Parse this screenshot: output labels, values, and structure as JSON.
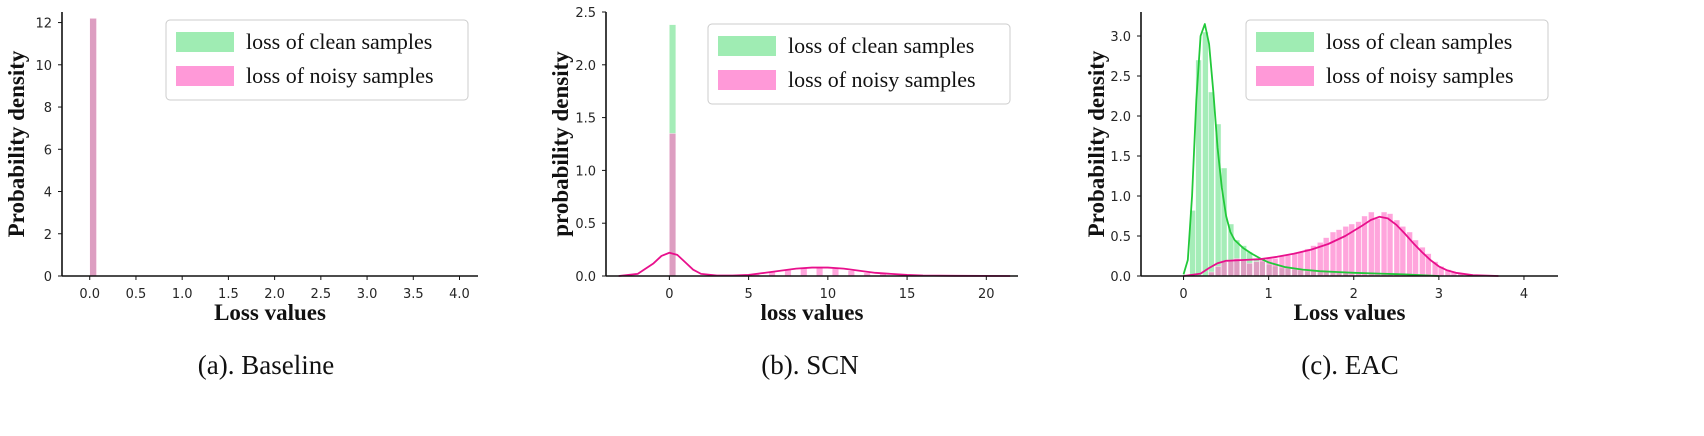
{
  "colors": {
    "clean_fill": "#7fe59a",
    "clean_line": "#22c93a",
    "noisy_fill": "#ff6ec7",
    "noisy_line": "#e8108c",
    "axis": "#111111"
  },
  "chart_data": [
    {
      "type": "histogram",
      "caption": "(a). Baseline",
      "xlabel": "Loss values",
      "ylabel": "Probability density",
      "xlim": [
        -0.3,
        4.2
      ],
      "ylim": [
        0,
        12.5
      ],
      "xticks": [
        0.0,
        0.5,
        1.0,
        1.5,
        2.0,
        2.5,
        3.0,
        3.5,
        4.0
      ],
      "xtick_labels": [
        "0.0",
        "0.5",
        "1.0",
        "1.5",
        "2.0",
        "2.5",
        "3.0",
        "3.5",
        "4.0"
      ],
      "yticks": [
        0,
        2,
        4,
        6,
        8,
        10,
        12
      ],
      "ytick_labels": [
        "0",
        "2",
        "4",
        "6",
        "8",
        "10",
        "12"
      ],
      "bin_width": 0.08,
      "legend": [
        "loss of clean samples",
        "loss of noisy samples"
      ],
      "legend_position": "top-right",
      "series": [
        {
          "name": "loss of clean samples",
          "x": [
            0.04,
            0.6,
            0.85
          ],
          "y": [
            12.2,
            0.02,
            0.02
          ],
          "kde": null
        },
        {
          "name": "loss of noisy samples",
          "x": [
            0.04,
            0.6
          ],
          "y": [
            12.2,
            0.03
          ],
          "kde": null
        }
      ]
    },
    {
      "type": "histogram",
      "caption": "(b). SCN",
      "xlabel": "loss values",
      "ylabel": "probability density",
      "xlim": [
        -4,
        22
      ],
      "ylim": [
        0,
        2.5
      ],
      "xticks": [
        0,
        5,
        10,
        15,
        20
      ],
      "xtick_labels": [
        "0",
        "5",
        "10",
        "15",
        "20"
      ],
      "yticks": [
        0.0,
        0.5,
        1.0,
        1.5,
        2.0,
        2.5
      ],
      "ytick_labels": [
        "0.0",
        "0.5",
        "1.0",
        "1.5",
        "2.0",
        "2.5"
      ],
      "bin_width": 0.45,
      "legend": [
        "loss of clean samples",
        "loss of noisy samples"
      ],
      "legend_position": "top-right",
      "series": [
        {
          "name": "loss of clean samples",
          "x": [
            0.22
          ],
          "y": [
            2.38
          ],
          "kde": null
        },
        {
          "name": "loss of noisy samples",
          "x": [
            0.22,
            5.5,
            6.5,
            7.5,
            8.5,
            9.5,
            10.5,
            11.5,
            12.5,
            13.5
          ],
          "y": [
            1.35,
            0.02,
            0.04,
            0.06,
            0.08,
            0.08,
            0.07,
            0.05,
            0.03,
            0.02
          ],
          "kde": {
            "x": [
              -3.2,
              -2,
              -1,
              -0.5,
              0,
              0.5,
              1,
              1.5,
              2,
              3,
              4,
              5,
              6,
              7,
              8,
              9,
              10,
              11,
              12,
              13,
              14,
              15,
              16,
              18,
              21.5
            ],
            "y": [
              0.0,
              0.02,
              0.12,
              0.19,
              0.22,
              0.2,
              0.13,
              0.06,
              0.02,
              0.005,
              0.005,
              0.01,
              0.03,
              0.05,
              0.07,
              0.08,
              0.08,
              0.07,
              0.05,
              0.03,
              0.02,
              0.01,
              0.005,
              0.002,
              0.0
            ]
          }
        }
      ]
    },
    {
      "type": "histogram",
      "caption": "(c). EAC",
      "xlabel": "Loss values",
      "ylabel": "Probability density",
      "xlim": [
        -0.5,
        4.4
      ],
      "ylim": [
        0,
        3.3
      ],
      "xticks": [
        0,
        1,
        2,
        3,
        4
      ],
      "xtick_labels": [
        "0",
        "1",
        "2",
        "3",
        "4"
      ],
      "yticks": [
        0.0,
        0.5,
        1.0,
        1.5,
        2.0,
        2.5,
        3.0
      ],
      "ytick_labels": [
        "0.0",
        "0.5",
        "1.0",
        "1.5",
        "2.0",
        "2.5",
        "3.0"
      ],
      "bin_width": 0.075,
      "legend": [
        "loss of clean samples",
        "loss of noisy samples"
      ],
      "legend_position": "top-right",
      "series": [
        {
          "name": "loss of clean samples",
          "x": [
            0.11,
            0.18,
            0.26,
            0.33,
            0.41,
            0.48,
            0.56,
            0.63,
            0.71,
            0.78,
            0.86,
            0.93,
            1.01,
            1.08,
            1.16,
            1.23,
            1.31,
            1.38,
            1.46,
            1.53,
            1.61,
            1.68,
            1.76,
            1.83,
            1.91
          ],
          "y": [
            0.82,
            2.7,
            3.05,
            2.3,
            1.9,
            1.35,
            0.65,
            0.45,
            0.38,
            0.3,
            0.22,
            0.18,
            0.14,
            0.12,
            0.1,
            0.09,
            0.08,
            0.07,
            0.06,
            0.06,
            0.05,
            0.05,
            0.05,
            0.04,
            0.04
          ],
          "kde": {
            "x": [
              0.0,
              0.05,
              0.1,
              0.15,
              0.2,
              0.25,
              0.3,
              0.35,
              0.4,
              0.45,
              0.5,
              0.55,
              0.6,
              0.7,
              0.8,
              0.9,
              1.0,
              1.2,
              1.4,
              1.6,
              1.8,
              2.0,
              2.3,
              2.6,
              3.0
            ],
            "y": [
              0.02,
              0.2,
              1.0,
              2.2,
              3.0,
              3.15,
              2.9,
              2.3,
              1.6,
              1.1,
              0.75,
              0.55,
              0.45,
              0.35,
              0.28,
              0.22,
              0.17,
              0.11,
              0.08,
              0.06,
              0.05,
              0.04,
              0.03,
              0.02,
              0.0
            ]
          }
        },
        {
          "name": "loss of noisy samples",
          "x": [
            0.33,
            0.41,
            0.48,
            0.56,
            0.63,
            0.71,
            0.78,
            0.86,
            0.93,
            1.01,
            1.08,
            1.16,
            1.23,
            1.31,
            1.38,
            1.46,
            1.53,
            1.61,
            1.68,
            1.76,
            1.83,
            1.91,
            1.98,
            2.06,
            2.13,
            2.21,
            2.28,
            2.36,
            2.43,
            2.51,
            2.58,
            2.66,
            2.73,
            2.81,
            2.88,
            2.96,
            3.03,
            3.11,
            3.18,
            3.26
          ],
          "y": [
            0.05,
            0.12,
            0.18,
            0.2,
            0.22,
            0.2,
            0.16,
            0.18,
            0.2,
            0.22,
            0.22,
            0.25,
            0.26,
            0.28,
            0.3,
            0.34,
            0.38,
            0.42,
            0.48,
            0.55,
            0.58,
            0.62,
            0.65,
            0.68,
            0.75,
            0.8,
            0.72,
            0.8,
            0.78,
            0.7,
            0.62,
            0.55,
            0.45,
            0.36,
            0.28,
            0.18,
            0.12,
            0.08,
            0.05,
            0.03
          ],
          "kde": {
            "x": [
              0.0,
              0.2,
              0.3,
              0.4,
              0.5,
              0.7,
              0.9,
              1.1,
              1.3,
              1.5,
              1.7,
              1.9,
              2.1,
              2.2,
              2.3,
              2.4,
              2.5,
              2.6,
              2.7,
              2.8,
              2.9,
              3.0,
              3.1,
              3.2,
              3.4,
              3.7
            ],
            "y": [
              0.0,
              0.03,
              0.1,
              0.16,
              0.19,
              0.2,
              0.21,
              0.24,
              0.28,
              0.33,
              0.4,
              0.5,
              0.63,
              0.7,
              0.74,
              0.72,
              0.64,
              0.53,
              0.41,
              0.3,
              0.2,
              0.12,
              0.07,
              0.04,
              0.01,
              0.0
            ]
          }
        }
      ]
    }
  ]
}
